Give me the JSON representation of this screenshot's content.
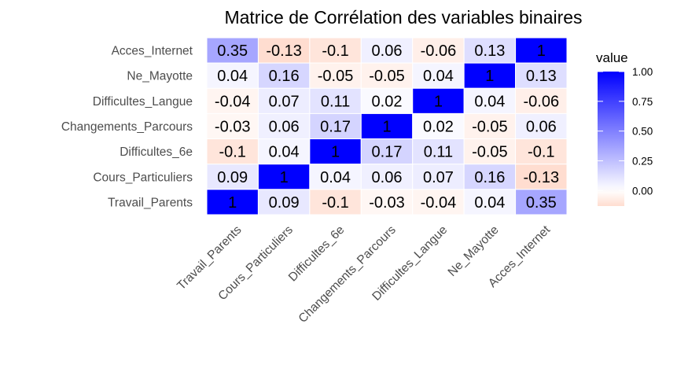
{
  "chart_data": {
    "type": "heatmap",
    "title": "Matrice de Corrélation des variables binaires",
    "x_categories": [
      "Travail_Parents",
      "Cours_Particuliers",
      "Difficultes_6e",
      "Changements_Parcours",
      "Difficultes_Langue",
      "Ne_Mayotte",
      "Acces_Internet"
    ],
    "y_categories_top_to_bottom": [
      "Acces_Internet",
      "Ne_Mayotte",
      "Difficultes_Langue",
      "Changements_Parcours",
      "Difficultes_6e",
      "Cours_Particuliers",
      "Travail_Parents"
    ],
    "values": [
      [
        0.35,
        -0.13,
        -0.1,
        0.06,
        -0.06,
        0.13,
        1
      ],
      [
        0.04,
        0.16,
        -0.05,
        -0.05,
        0.04,
        1,
        0.13
      ],
      [
        -0.04,
        0.07,
        0.11,
        0.02,
        1,
        0.04,
        -0.06
      ],
      [
        -0.03,
        0.06,
        0.17,
        1,
        0.02,
        -0.05,
        0.06
      ],
      [
        -0.1,
        0.04,
        1,
        0.17,
        0.11,
        -0.05,
        -0.1
      ],
      [
        0.09,
        1,
        0.04,
        0.06,
        0.07,
        0.16,
        -0.13
      ],
      [
        1,
        0.09,
        -0.1,
        -0.03,
        -0.04,
        0.04,
        0.35
      ]
    ],
    "legend": {
      "title": "value",
      "ticks": [
        "1.00",
        "0.75",
        "0.50",
        "0.25",
        "0.00"
      ],
      "tick_values": [
        1.0,
        0.75,
        0.5,
        0.25,
        0.0
      ],
      "range": [
        -0.13,
        1.0
      ],
      "placement": "right"
    },
    "colors": {
      "high": "#0000ff",
      "mid": "#ffffff",
      "low": "#ffddd0"
    }
  }
}
